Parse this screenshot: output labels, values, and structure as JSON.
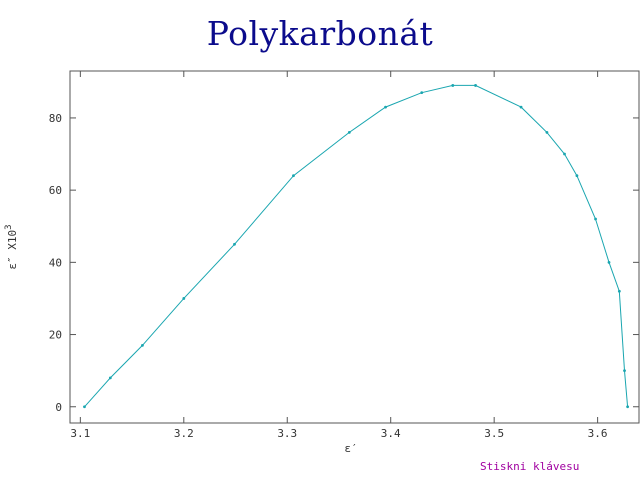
{
  "chart_data": {
    "type": "line",
    "title": "Polykarbonát",
    "xlabel": "ε′",
    "ylabel": "ε″ X10",
    "ylabel_exponent": "3",
    "xlim": [
      3.09,
      3.64
    ],
    "ylim": [
      -4.5,
      93
    ],
    "x_ticks": [
      "3.1",
      "3.2",
      "3.3",
      "3.4",
      "3.5",
      "3.6"
    ],
    "y_ticks": [
      "0",
      "20",
      "40",
      "60",
      "80"
    ],
    "line_color": "#1aa6b0",
    "grid": false,
    "series": [
      {
        "x": [
          3.104,
          3.129,
          3.16,
          3.2,
          3.249,
          3.306,
          3.36,
          3.395,
          3.43,
          3.46,
          3.482,
          3.526,
          3.551,
          3.568,
          3.58,
          3.598,
          3.611,
          3.621,
          3.626,
          3.629
        ],
        "y": [
          0,
          8,
          17,
          30,
          45,
          64,
          76,
          83,
          87,
          89,
          89,
          83,
          76,
          70,
          64,
          52,
          40,
          32,
          10,
          0
        ]
      }
    ]
  },
  "footer": {
    "prompt": "Stiskni klávesu"
  }
}
